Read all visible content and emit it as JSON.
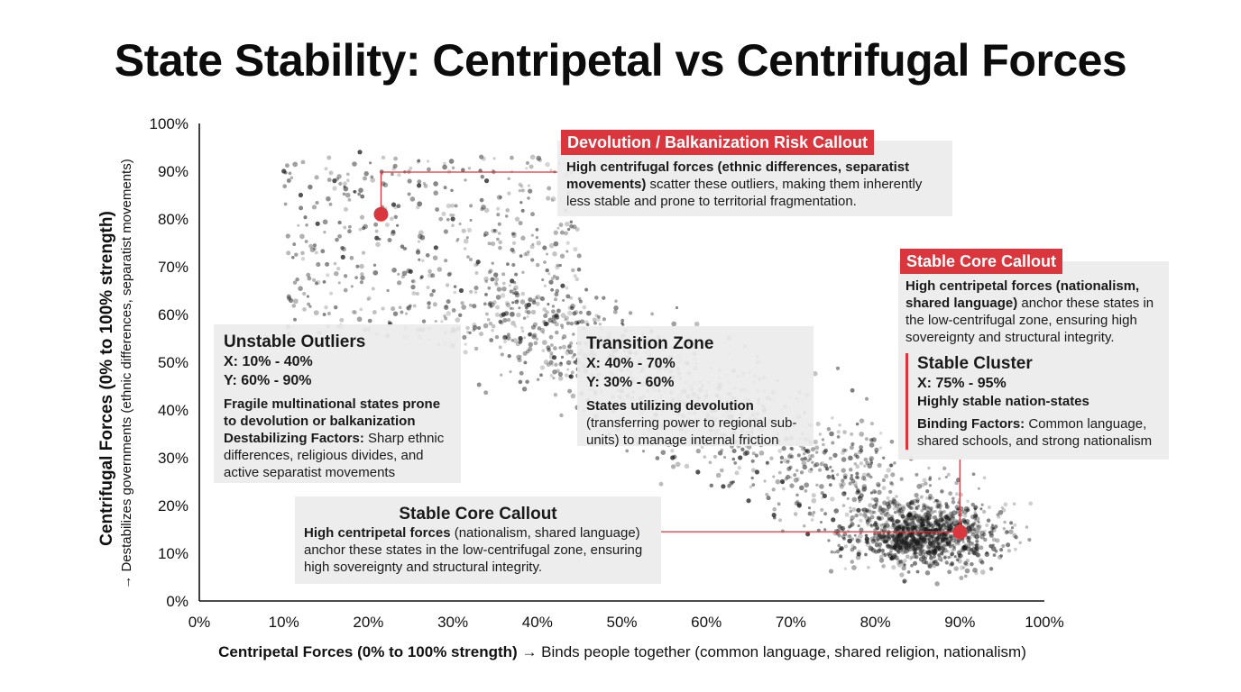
{
  "title": "State Stability: Centripetal vs Centrifugal Forces",
  "chart_data": {
    "type": "scatter",
    "title": "State Stability: Centripetal vs Centrifugal Forces",
    "xlabel_bold": "Centripetal Forces (0% to 100% strength)",
    "xlabel_rest": "→ Binds people together (common language, shared religion, nationalism)",
    "ylabel_bold": "Centrifugal Forces (0% to 100% strength)",
    "ylabel_rest": "→ Destabilizes governments (ethnic differences, separatist movements)",
    "xlim": [
      0,
      100
    ],
    "ylim": [
      0,
      100
    ],
    "ticks": [
      0,
      10,
      20,
      30,
      40,
      50,
      60,
      70,
      80,
      90,
      100
    ],
    "tick_labels": [
      "0%",
      "10%",
      "20%",
      "30%",
      "40%",
      "50%",
      "60%",
      "70%",
      "80%",
      "90%",
      "100%"
    ],
    "grid": false,
    "point_color": "#1a1a1a",
    "highlight_color": "#d9363e",
    "points": [
      {
        "x": 10,
        "y": 90
      },
      {
        "x": 12,
        "y": 85
      },
      {
        "x": 14,
        "y": 79
      },
      {
        "x": 16,
        "y": 88
      },
      {
        "x": 17,
        "y": 72
      },
      {
        "x": 19,
        "y": 94
      },
      {
        "x": 21,
        "y": 76
      },
      {
        "x": 23,
        "y": 83
      },
      {
        "x": 25,
        "y": 69
      },
      {
        "x": 26,
        "y": 87
      },
      {
        "x": 28,
        "y": 74
      },
      {
        "x": 30,
        "y": 80
      },
      {
        "x": 31,
        "y": 65
      },
      {
        "x": 33,
        "y": 71
      },
      {
        "x": 34,
        "y": 88
      },
      {
        "x": 36,
        "y": 60
      },
      {
        "x": 37,
        "y": 67
      },
      {
        "x": 38,
        "y": 55
      },
      {
        "x": 39,
        "y": 62
      },
      {
        "x": 41,
        "y": 58
      },
      {
        "x": 42,
        "y": 51
      },
      {
        "x": 43,
        "y": 66
      },
      {
        "x": 44,
        "y": 47
      },
      {
        "x": 45,
        "y": 54
      },
      {
        "x": 46,
        "y": 42
      },
      {
        "x": 47,
        "y": 49
      },
      {
        "x": 48,
        "y": 37
      },
      {
        "x": 50,
        "y": 44
      },
      {
        "x": 51,
        "y": 52
      },
      {
        "x": 52,
        "y": 33
      },
      {
        "x": 54,
        "y": 39
      },
      {
        "x": 55,
        "y": 46
      },
      {
        "x": 56,
        "y": 30
      },
      {
        "x": 57,
        "y": 36
      },
      {
        "x": 59,
        "y": 27
      },
      {
        "x": 60,
        "y": 33
      },
      {
        "x": 61,
        "y": 40
      },
      {
        "x": 62,
        "y": 24
      },
      {
        "x": 64,
        "y": 30
      },
      {
        "x": 65,
        "y": 21
      },
      {
        "x": 66,
        "y": 27
      },
      {
        "x": 68,
        "y": 18
      },
      {
        "x": 69,
        "y": 25
      },
      {
        "x": 71,
        "y": 20
      },
      {
        "x": 72,
        "y": 14
      },
      {
        "x": 74,
        "y": 22
      },
      {
        "x": 75,
        "y": 17
      },
      {
        "x": 76,
        "y": 11
      },
      {
        "x": 78,
        "y": 19
      },
      {
        "x": 79,
        "y": 13
      },
      {
        "x": 80,
        "y": 16
      },
      {
        "x": 82,
        "y": 9
      },
      {
        "x": 83,
        "y": 14
      },
      {
        "x": 84,
        "y": 18
      },
      {
        "x": 85,
        "y": 12
      },
      {
        "x": 86,
        "y": 15
      },
      {
        "x": 87,
        "y": 10
      },
      {
        "x": 88,
        "y": 13
      },
      {
        "x": 90,
        "y": 16
      },
      {
        "x": 92,
        "y": 11
      }
    ],
    "highlights": [
      {
        "name": "unstable-outlier-marker",
        "x": 21.5,
        "y": 81
      },
      {
        "name": "stable-core-marker",
        "x": 90,
        "y": 14.5
      }
    ]
  },
  "annotations": {
    "outliers": {
      "header": "Unstable Outliers",
      "x_range": "X: 10% - 40%",
      "y_range": "Y: 60% - 90%",
      "desc": "Fragile multinational states prone to devolution or balkanization",
      "factors_label": "Destabilizing Factors:",
      "factors_text": "Sharp ethnic differences, religious divides, and active separatist movements"
    },
    "transition": {
      "header": "Transition Zone",
      "x_range": "X: 40% - 70%",
      "y_range": "Y: 30% - 60%",
      "desc_bold": "States utilizing devolution",
      "desc_rest": "(transferring power to regional sub-units) to manage internal friction"
    },
    "devolution": {
      "tag": "Devolution / Balkanization Risk Callout",
      "text_bold": "High centrifugal forces (ethnic differences, separatist movements)",
      "text_rest": "scatter these outliers, making them inherently less stable and prone to territorial fragmentation."
    },
    "stable_core_right": {
      "tag": "Stable Core Callout",
      "text_bold": "High centripetal forces (nationalism, shared language)",
      "text_rest": "anchor these states in the low-centrifugal zone, ensuring high sovereignty and structural integrity.",
      "cluster_header": "Stable Cluster",
      "cluster_range": "X: 75% - 95%",
      "cluster_desc": "Highly stable nation-states",
      "factors_label": "Binding Factors:",
      "factors_text": "Common language, shared schools, and strong nationalism"
    },
    "stable_core_bottom": {
      "header": "Stable Core Callout",
      "text_bold": "High centripetal forces",
      "text_rest": "(nationalism, shared language) anchor these states in the low-centrifugal zone, ensuring high sovereignty and structural integrity."
    }
  }
}
